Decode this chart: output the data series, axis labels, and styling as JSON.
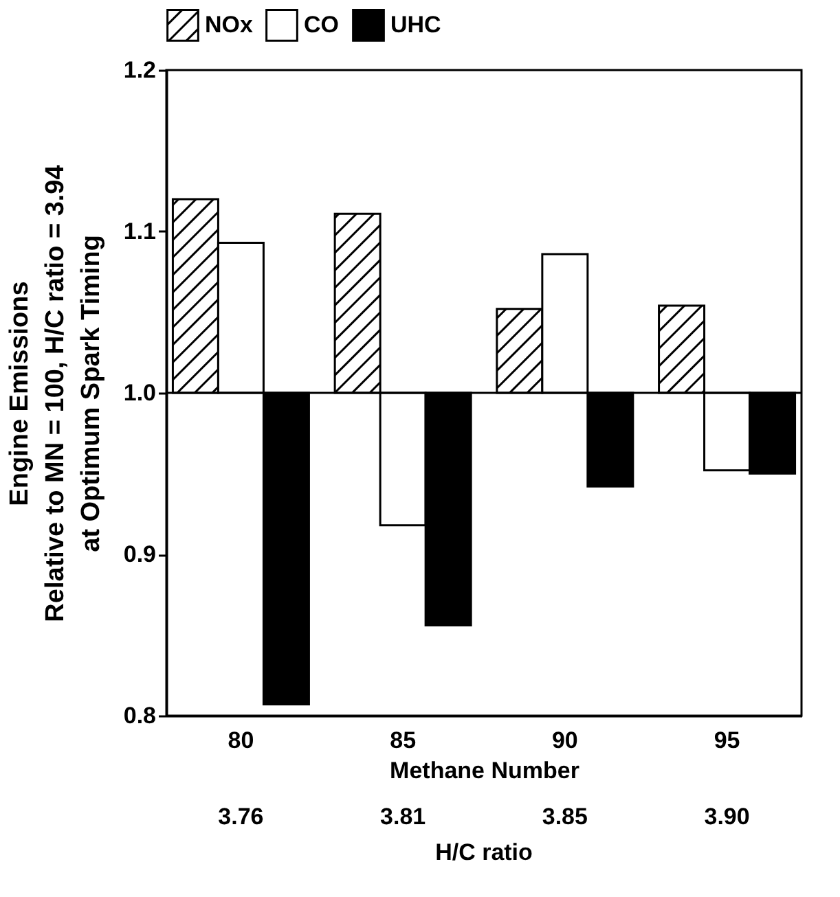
{
  "chart_data": {
    "type": "bar",
    "ylabel": "Engine Emissions\nRelative to MN = 100, H/C ratio = 3.94\nat Optimum Spark Timing",
    "xlabel": "Methane Number",
    "categories": [
      "80",
      "85",
      "90",
      "95"
    ],
    "series": [
      {
        "name": "NOx",
        "color": "#000000",
        "values": [
          0.12,
          0.111,
          0.052,
          0.054
        ],
        "base": [
          1,
          1,
          1,
          1
        ]
      },
      {
        "name": "CO",
        "color": "#ffffff",
        "values": [
          0.093,
          -0.082,
          0.086,
          -0.048
        ],
        "base": [
          1,
          1,
          1,
          1
        ]
      },
      {
        "name": "UHC",
        "color": "#000000",
        "values": [
          -0.193,
          -0.144,
          -0.058,
          -0.05
        ],
        "base": [
          1,
          1,
          1,
          1
        ]
      }
    ],
    "ylim": [
      0.8,
      1.2
    ],
    "yticks": [
      0.8,
      0.9,
      {
        "value": 1,
        "label": "1.0"
      },
      1.1,
      1.2
    ],
    "ref_lines": [
      {
        "axis": "y",
        "value": 1
      }
    ],
    "annotations": [
      "3.76",
      "3.81",
      "3.85",
      "3.90",
      "H/C ratio"
    ],
    "legend": "top",
    "grid": false
  }
}
